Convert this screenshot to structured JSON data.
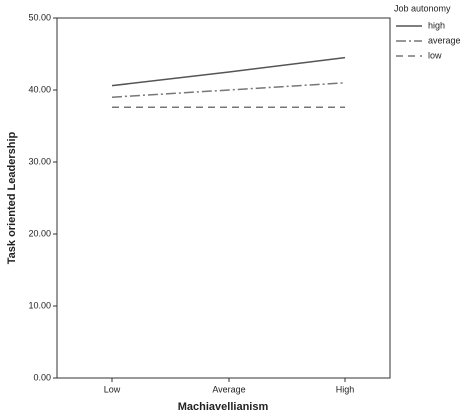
{
  "chart_data": {
    "type": "line",
    "x_label": "Machiavellianism",
    "y_label": "Task oriented Leadership",
    "legend_title": "Job autonomy",
    "legend": "outside-right",
    "categories": [
      "Low",
      "Average",
      "High"
    ],
    "series": [
      {
        "name": "high",
        "color": "#555555",
        "dash": "solid",
        "values": [
          40.6,
          42.5,
          44.5
        ]
      },
      {
        "name": "average",
        "color": "#777777",
        "dash": "dashdot",
        "values": [
          39.0,
          40.0,
          41.0
        ]
      },
      {
        "name": "low",
        "color": "#777777",
        "dash": "dashed",
        "values": [
          37.6,
          37.6,
          37.6
        ]
      }
    ],
    "ylim": [
      0,
      50
    ],
    "yticks": [
      {
        "value": 0,
        "label": "0.00"
      },
      {
        "value": 10,
        "label": "10.00"
      },
      {
        "value": 20,
        "label": "20.00"
      },
      {
        "value": 30,
        "label": "30.00"
      },
      {
        "value": 40,
        "label": "40.00"
      },
      {
        "value": 50,
        "label": "50.00"
      }
    ]
  }
}
